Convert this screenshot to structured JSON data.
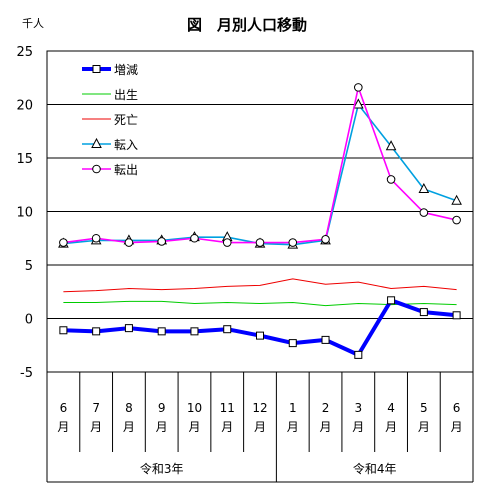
{
  "chart_data": {
    "type": "line",
    "title": "図　月別人口移動",
    "unit_label": "千人",
    "ylim": [
      -5,
      25
    ],
    "yticks": [
      -5,
      0,
      5,
      10,
      15,
      20,
      25
    ],
    "grid": "horizontal",
    "legend_position": "top-left",
    "categories": [
      {
        "num": "6",
        "unit": "月"
      },
      {
        "num": "7",
        "unit": "月"
      },
      {
        "num": "8",
        "unit": "月"
      },
      {
        "num": "9",
        "unit": "月"
      },
      {
        "num": "10",
        "unit": "月"
      },
      {
        "num": "11",
        "unit": "月"
      },
      {
        "num": "12",
        "unit": "月"
      },
      {
        "num": "1",
        "unit": "月"
      },
      {
        "num": "2",
        "unit": "月"
      },
      {
        "num": "3",
        "unit": "月"
      },
      {
        "num": "4",
        "unit": "月"
      },
      {
        "num": "5",
        "unit": "月"
      },
      {
        "num": "6",
        "unit": "月"
      }
    ],
    "year_groups": [
      {
        "label": "令和3年",
        "count": 7
      },
      {
        "label": "令和4年",
        "count": 6
      }
    ],
    "series": [
      {
        "name": "増減",
        "color": "#0000ff",
        "marker": "square",
        "values": [
          -1.1,
          -1.2,
          -0.9,
          -1.2,
          -1.2,
          -1.0,
          -1.6,
          -2.3,
          -2.0,
          -3.4,
          1.7,
          0.6,
          0.3
        ]
      },
      {
        "name": "出生",
        "color": "#00cc00",
        "marker": "none",
        "values": [
          1.5,
          1.5,
          1.6,
          1.6,
          1.4,
          1.5,
          1.4,
          1.5,
          1.2,
          1.4,
          1.3,
          1.4,
          1.3
        ]
      },
      {
        "name": "死亡",
        "color": "#ee0000",
        "marker": "none",
        "values": [
          2.5,
          2.6,
          2.8,
          2.7,
          2.8,
          3.0,
          3.1,
          3.7,
          3.2,
          3.4,
          2.8,
          3.0,
          2.7
        ]
      },
      {
        "name": "転入",
        "color": "#00a0e0",
        "marker": "triangle",
        "values": [
          7.0,
          7.3,
          7.3,
          7.3,
          7.6,
          7.6,
          7.0,
          6.9,
          7.3,
          20.0,
          16.1,
          12.1,
          11.0
        ]
      },
      {
        "name": "転出",
        "color": "#ff00ff",
        "marker": "circle",
        "values": [
          7.1,
          7.5,
          7.1,
          7.2,
          7.5,
          7.1,
          7.1,
          7.1,
          7.4,
          21.6,
          13.0,
          9.9,
          9.2
        ]
      }
    ]
  }
}
